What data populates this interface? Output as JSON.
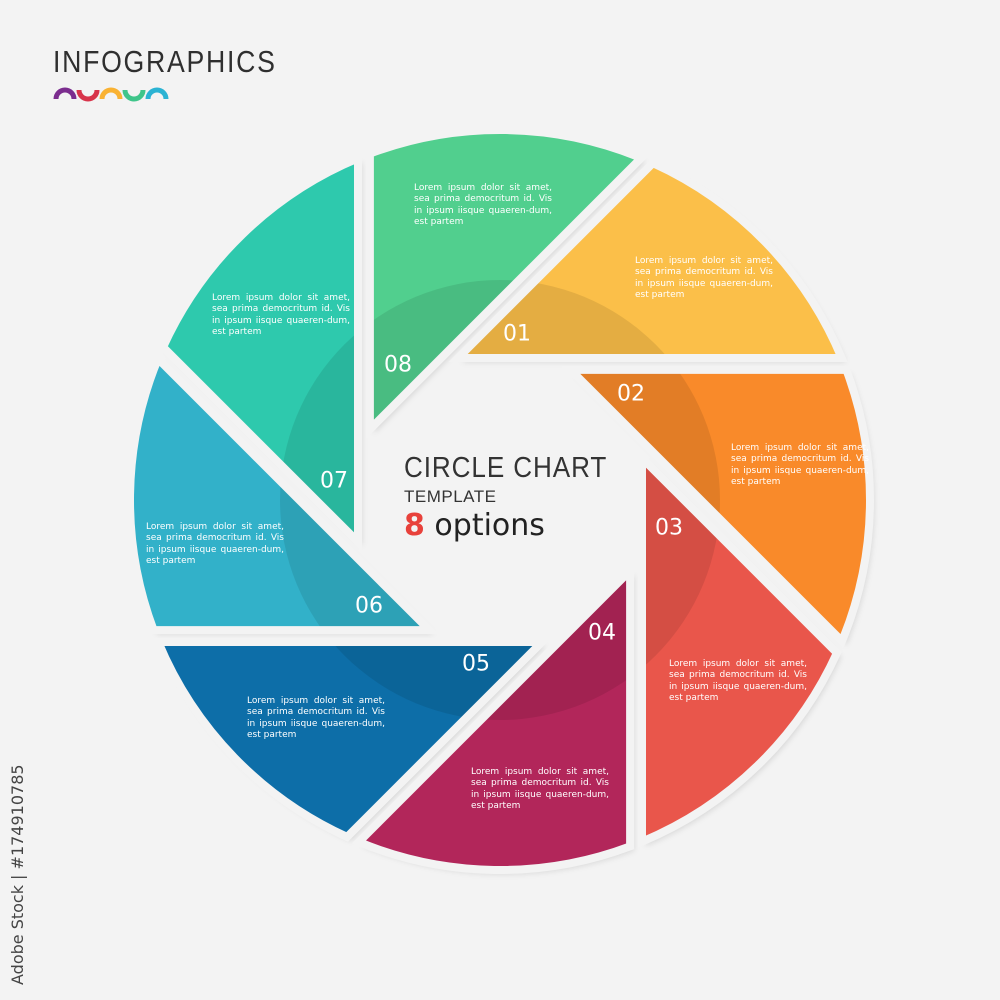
{
  "header": {
    "title": "INFOGRAPHICS",
    "logo_arc_colors": [
      "#7b2d8e",
      "#d8344a",
      "#f9b233",
      "#3fc58a",
      "#2bb3d3"
    ]
  },
  "center": {
    "title": "CIRCLE CHART",
    "subtitle": "TEMPLATE",
    "options_number": "8",
    "options_label": "options"
  },
  "segments": [
    {
      "number": "01",
      "color": "#fbbf4a",
      "text": "Lorem ipsum dolor sit amet, sea prima democritum id. Vis in ipsum iisque quaeren-dum, est partem"
    },
    {
      "number": "02",
      "color": "#f98a2a",
      "text": "Lorem ipsum dolor sit amet, sea prima democritum id. Vis in ipsum iisque quaeren-dum, est partem"
    },
    {
      "number": "03",
      "color": "#e9564b",
      "text": "Lorem ipsum dolor sit amet, sea prima democritum id. Vis in ipsum iisque quaeren-dum, est partem"
    },
    {
      "number": "04",
      "color": "#b2265a",
      "text": "Lorem ipsum dolor sit amet, sea prima democritum id. Vis in ipsum iisque quaeren-dum, est partem"
    },
    {
      "number": "05",
      "color": "#0f6ea8",
      "text": "Lorem ipsum dolor sit amet, sea prima democritum id. Vis in ipsum iisque quaeren-dum, est partem"
    },
    {
      "number": "06",
      "color": "#30b1c9",
      "text": "Lorem ipsum dolor sit amet, sea prima democritum id. Vis in ipsum iisque quaeren-dum, est partem"
    },
    {
      "number": "07",
      "color": "#2ec9ad",
      "text": "Lorem ipsum dolor sit amet, sea prima democritum id. Vis in ipsum iisque quaeren-dum, est partem"
    },
    {
      "number": "08",
      "color": "#51cf8e",
      "text": "Lorem ipsum dolor sit amet, sea prima democritum id. Vis in ipsum iisque quaeren-dum, est partem"
    }
  ],
  "credit": "Adobe Stock | #174910785"
}
